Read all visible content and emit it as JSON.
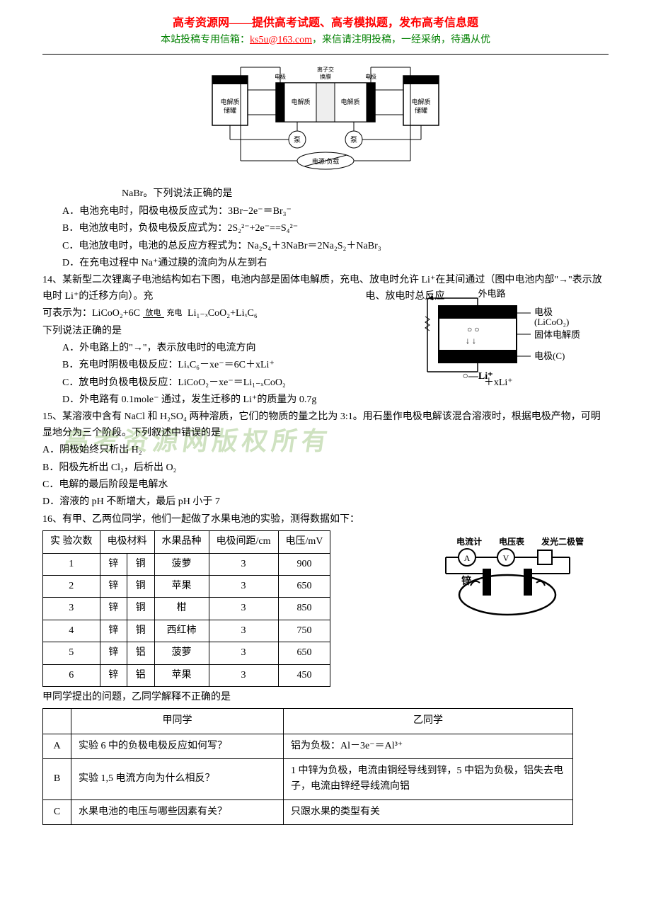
{
  "header": {
    "title": "高考资源网——提供高考试题、高考模拟题，发布高考信息题",
    "sub_prefix": "本站投稿专用信箱：",
    "email": "ks5u@163.com",
    "sub_suffix": "，来信请注明投稿，一经采纳，待遇从优"
  },
  "watermark": "高考资源网版权所有",
  "diagram1": {
    "labels": [
      "电解质",
      "电极",
      "电解质",
      "电极",
      "电解质储罐",
      "电解质储罐",
      "泵",
      "泵",
      "电源/负载",
      "离子交换膜"
    ]
  },
  "q13": {
    "intro": "NaBr。下列说法正确的是",
    "A": "A．电池充电时，阳极电极反应式为：3Br−2e⁻＝Br₃⁻",
    "B": "B．电池放电时，负极电极反应式为：2S₂²⁻+2e⁻==S₄²⁻",
    "C": "C．电池放电时，电池的总反应方程式为：Na₂S₄＋3NaBr＝2Na₂S₂＋NaBr₃",
    "D": "D．在充电过程中 Na⁺通过膜的流向为从左到右"
  },
  "q14": {
    "stem1": "14、某新型二次锂离子电池结构如右下图，电池内部是固体电解质，充电、放电时允许 Li⁺在其间通过（图中电池内部\"→\"表示放电时 Li⁺的迁移方向）。充",
    "stem2": "电、放电时总反应",
    "eq_prefix": "可表示为：LiCoO₂+6C",
    "eq_top": "放电",
    "eq_bot": "充电",
    "eq_suffix": " Li₁₋ₓCoO₂+LiₓC₆",
    "tail": "下列说法正确的是",
    "A": "A．外电路上的\"→\"，表示放电时的电流方向",
    "B": "B．充电时阴极电极反应：LiₓC₆－xe⁻＝6C＋xLi⁺",
    "C": "C．放电时负极电极反应：LiCoO₂－xe⁻＝Li₁₋ₓCoO₂",
    "C_tail": "＋xLi⁺",
    "D": "D．外电路有 0.1mole⁻ 通过，发生迁移的 Li⁺的质量为 0.7g",
    "diagram": {
      "top": "外电路",
      "r1": "电极",
      "r1b": "(LiCoO₂)",
      "r2": "固体电解质",
      "r3": "电极(C)",
      "bot": "○—Li⁺"
    }
  },
  "q15": {
    "stem": "15、某溶液中含有 NaCl 和 H₂SO₄ 两种溶质，它们的物质的量之比为 3:1。用石墨作电极电解该混合溶液时，根据电极产物，可明显地分为三个阶段。下列叙述中错误的是",
    "A": "A．阴极始终只析出 H₂",
    "B": "B．阳极先析出 Cl₂，后析出 O₂",
    "C": "C．电解的最后阶段是电解水",
    "D": "D．溶液的 pH 不断增大，最后 pH 小于 7"
  },
  "q16": {
    "stem": "16、有甲、乙两位同学，他们一起做了水果电池的实验，测得数据如下：",
    "table": {
      "headers": [
        "实 验次数",
        "电极材料",
        "水果品种",
        "电极间距/cm",
        "电压/mV"
      ],
      "header_colspan": [
        1,
        2,
        1,
        1,
        1
      ],
      "rows": [
        [
          "1",
          "锌",
          "铜",
          "菠萝",
          "3",
          "900"
        ],
        [
          "2",
          "锌",
          "铜",
          "苹果",
          "3",
          "650"
        ],
        [
          "3",
          "锌",
          "铜",
          "柑",
          "3",
          "850"
        ],
        [
          "4",
          "锌",
          "铜",
          "西红柿",
          "3",
          "750"
        ],
        [
          "5",
          "锌",
          "铝",
          "菠萝",
          "3",
          "650"
        ],
        [
          "6",
          "锌",
          "铝",
          "苹果",
          "3",
          "450"
        ]
      ]
    },
    "diagram_labels": [
      "电流计",
      "电压表",
      "发光二极管",
      "锌"
    ],
    "qa_intro": "甲同学提出的问题，乙同学解释不正确的是",
    "qa": {
      "h1": "甲同学",
      "h2": "乙同学",
      "rows": [
        [
          "A",
          "实验 6 中的负极电极反应如何写？",
          "铝为负极：Al－3e⁻＝Al³⁺"
        ],
        [
          "B",
          "实验 1,5 电流方向为什么相反？",
          "1 中锌为负极，电流由铜经导线到锌，5 中铝为负极，铝失去电子，电流由锌经导线流向铝"
        ],
        [
          "C",
          "水果电池的电压与哪些因素有关？",
          "只跟水果的类型有关"
        ]
      ]
    }
  },
  "colors": {
    "red": "#ff0000",
    "green": "#008000",
    "watermark": "#a8cc8f",
    "text": "#000000",
    "bg": "#ffffff"
  }
}
